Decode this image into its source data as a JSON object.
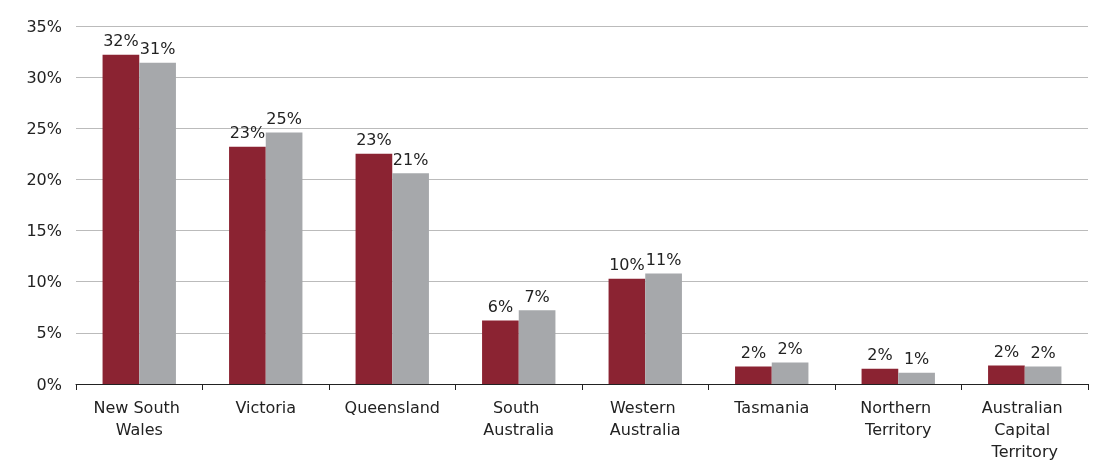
{
  "chart_data": {
    "type": "bar",
    "categories": [
      "New South Wales",
      "Victoria",
      "Queensland",
      "South Australia",
      "Western Australia",
      "Tasmania",
      "Northern Territory",
      "Australian Capital Territory"
    ],
    "series": [
      {
        "color": "#8b2332",
        "values": [
          32.2,
          23.2,
          22.5,
          6.2,
          10.3,
          1.7,
          1.5,
          1.8
        ],
        "value_labels": [
          "32%",
          "23%",
          "23%",
          "6%",
          "10%",
          "2%",
          "2%",
          "2%"
        ]
      },
      {
        "color": "#a6a8ab",
        "values": [
          31.4,
          24.6,
          20.6,
          7.2,
          10.8,
          2.1,
          1.1,
          1.7
        ],
        "value_labels": [
          "31%",
          "25%",
          "21%",
          "7%",
          "11%",
          "2%",
          "1%",
          "2%"
        ]
      }
    ],
    "ylim": [
      0,
      35
    ],
    "yticks": [
      {
        "value": 0,
        "label": "0%"
      },
      {
        "value": 5,
        "label": "5%"
      },
      {
        "value": 10,
        "label": "10%"
      },
      {
        "value": 15,
        "label": "15%"
      },
      {
        "value": 20,
        "label": "20%"
      },
      {
        "value": 25,
        "label": "25%"
      },
      {
        "value": 30,
        "label": "30%"
      },
      {
        "value": 35,
        "label": "35%"
      }
    ],
    "grid": "y"
  }
}
